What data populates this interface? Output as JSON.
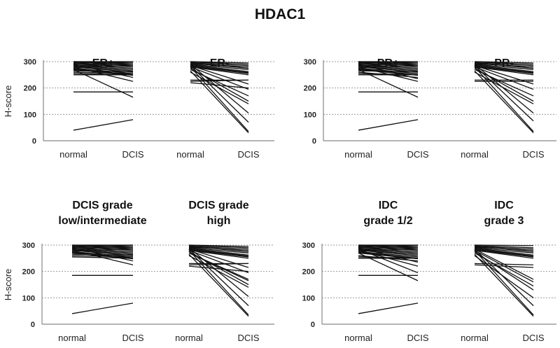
{
  "chart_data": {
    "type": "line",
    "title": "HDAC1",
    "ylabel": "H-score",
    "ylim": [
      0,
      300
    ],
    "yticks": [
      "0",
      "100",
      "200",
      "300"
    ],
    "grid": true,
    "panels": [
      {
        "groups": [
          {
            "title": [
              "ER+"
            ],
            "categories": [
              "normal",
              "DCIS"
            ],
            "pairs": [
              [
                300,
                300
              ],
              [
                300,
                295
              ],
              [
                298,
                290
              ],
              [
                295,
                300
              ],
              [
                295,
                285
              ],
              [
                292,
                280
              ],
              [
                290,
                295
              ],
              [
                288,
                275
              ],
              [
                285,
                290
              ],
              [
                285,
                270
              ],
              [
                282,
                265
              ],
              [
                280,
                260
              ],
              [
                278,
                285
              ],
              [
                275,
                255
              ],
              [
                272,
                250
              ],
              [
                270,
                248
              ],
              [
                265,
                262
              ],
              [
                260,
                255
              ],
              [
                255,
                250
              ],
              [
                250,
                250
              ],
              [
                290,
                240
              ],
              [
                280,
                225
              ],
              [
                270,
                165
              ],
              [
                185,
                185
              ],
              [
                40,
                80
              ]
            ]
          },
          {
            "title": [
              "ER-"
            ],
            "categories": [
              "normal",
              "DCIS"
            ],
            "pairs": [
              [
                300,
                295
              ],
              [
                298,
                290
              ],
              [
                295,
                285
              ],
              [
                292,
                280
              ],
              [
                290,
                270
              ],
              [
                288,
                262
              ],
              [
                285,
                258
              ],
              [
                282,
                255
              ],
              [
                280,
                250
              ],
              [
                295,
                275
              ],
              [
                230,
                230
              ],
              [
                225,
                230
              ],
              [
                220,
                200
              ],
              [
                285,
                215
              ],
              [
                280,
                195
              ],
              [
                270,
                170
              ],
              [
                275,
                150
              ],
              [
                260,
                140
              ],
              [
                290,
                105
              ],
              [
                285,
                70
              ],
              [
                280,
                35
              ],
              [
                265,
                30
              ]
            ]
          }
        ]
      },
      {
        "groups": [
          {
            "title": [
              "PR+"
            ],
            "categories": [
              "normal",
              "DCIS"
            ],
            "pairs": [
              [
                300,
                300
              ],
              [
                300,
                295
              ],
              [
                298,
                290
              ],
              [
                295,
                300
              ],
              [
                295,
                285
              ],
              [
                292,
                280
              ],
              [
                290,
                295
              ],
              [
                288,
                275
              ],
              [
                285,
                290
              ],
              [
                285,
                270
              ],
              [
                282,
                265
              ],
              [
                280,
                260
              ],
              [
                278,
                285
              ],
              [
                275,
                255
              ],
              [
                272,
                250
              ],
              [
                270,
                248
              ],
              [
                265,
                262
              ],
              [
                260,
                240
              ],
              [
                255,
                250
              ],
              [
                250,
                250
              ],
              [
                290,
                235
              ],
              [
                280,
                225
              ],
              [
                270,
                165
              ],
              [
                185,
                185
              ],
              [
                40,
                80
              ]
            ]
          },
          {
            "title": [
              "PR-"
            ],
            "categories": [
              "normal",
              "DCIS"
            ],
            "pairs": [
              [
                300,
                295
              ],
              [
                298,
                290
              ],
              [
                295,
                285
              ],
              [
                292,
                280
              ],
              [
                290,
                270
              ],
              [
                288,
                262
              ],
              [
                285,
                258
              ],
              [
                282,
                255
              ],
              [
                280,
                250
              ],
              [
                295,
                275
              ],
              [
                230,
                230
              ],
              [
                225,
                225
              ],
              [
                285,
                215
              ],
              [
                280,
                195
              ],
              [
                270,
                170
              ],
              [
                275,
                150
              ],
              [
                260,
                140
              ],
              [
                290,
                105
              ],
              [
                285,
                75
              ],
              [
                280,
                35
              ],
              [
                265,
                30
              ]
            ]
          }
        ]
      },
      {
        "groups": [
          {
            "title": [
              "DCIS grade",
              "low/intermediate"
            ],
            "categories": [
              "normal",
              "DCIS"
            ],
            "pairs": [
              [
                300,
                300
              ],
              [
                300,
                295
              ],
              [
                298,
                290
              ],
              [
                295,
                300
              ],
              [
                295,
                285
              ],
              [
                292,
                280
              ],
              [
                290,
                295
              ],
              [
                288,
                275
              ],
              [
                285,
                290
              ],
              [
                285,
                270
              ],
              [
                282,
                265
              ],
              [
                280,
                260
              ],
              [
                278,
                285
              ],
              [
                275,
                255
              ],
              [
                272,
                250
              ],
              [
                270,
                248
              ],
              [
                265,
                262
              ],
              [
                260,
                255
              ],
              [
                255,
                250
              ],
              [
                290,
                240
              ],
              [
                280,
                225
              ],
              [
                185,
                185
              ],
              [
                40,
                80
              ]
            ]
          },
          {
            "title": [
              "DCIS grade",
              "high"
            ],
            "categories": [
              "normal",
              "DCIS"
            ],
            "pairs": [
              [
                300,
                295
              ],
              [
                298,
                290
              ],
              [
                295,
                285
              ],
              [
                292,
                280
              ],
              [
                290,
                270
              ],
              [
                288,
                262
              ],
              [
                285,
                258
              ],
              [
                282,
                255
              ],
              [
                280,
                250
              ],
              [
                295,
                275
              ],
              [
                230,
                230
              ],
              [
                225,
                230
              ],
              [
                220,
                200
              ],
              [
                285,
                215
              ],
              [
                280,
                195
              ],
              [
                270,
                170
              ],
              [
                275,
                150
              ],
              [
                260,
                140
              ],
              [
                290,
                105
              ],
              [
                285,
                70
              ],
              [
                280,
                35
              ],
              [
                265,
                30
              ],
              [
                270,
                165
              ]
            ]
          }
        ]
      },
      {
        "groups": [
          {
            "title": [
              "IDC",
              "grade 1/2"
            ],
            "categories": [
              "normal",
              "DCIS"
            ],
            "pairs": [
              [
                300,
                300
              ],
              [
                300,
                295
              ],
              [
                298,
                290
              ],
              [
                295,
                300
              ],
              [
                295,
                285
              ],
              [
                292,
                280
              ],
              [
                290,
                295
              ],
              [
                288,
                275
              ],
              [
                285,
                290
              ],
              [
                285,
                270
              ],
              [
                282,
                265
              ],
              [
                280,
                260
              ],
              [
                278,
                285
              ],
              [
                275,
                255
              ],
              [
                272,
                250
              ],
              [
                270,
                248
              ],
              [
                260,
                240
              ],
              [
                255,
                250
              ],
              [
                250,
                250
              ],
              [
                290,
                235
              ],
              [
                280,
                220
              ],
              [
                285,
                195
              ],
              [
                270,
                165
              ],
              [
                185,
                185
              ],
              [
                40,
                80
              ]
            ]
          },
          {
            "title": [
              "IDC",
              "grade 3"
            ],
            "categories": [
              "normal",
              "DCIS"
            ],
            "pairs": [
              [
                300,
                298
              ],
              [
                298,
                290
              ],
              [
                295,
                285
              ],
              [
                292,
                280
              ],
              [
                290,
                270
              ],
              [
                288,
                262
              ],
              [
                285,
                258
              ],
              [
                282,
                255
              ],
              [
                280,
                250
              ],
              [
                295,
                275
              ],
              [
                230,
                225
              ],
              [
                225,
                215
              ],
              [
                285,
                170
              ],
              [
                280,
                160
              ],
              [
                270,
                145
              ],
              [
                275,
                130
              ],
              [
                260,
                100
              ],
              [
                285,
                70
              ],
              [
                280,
                35
              ],
              [
                265,
                30
              ]
            ]
          }
        ]
      }
    ]
  }
}
